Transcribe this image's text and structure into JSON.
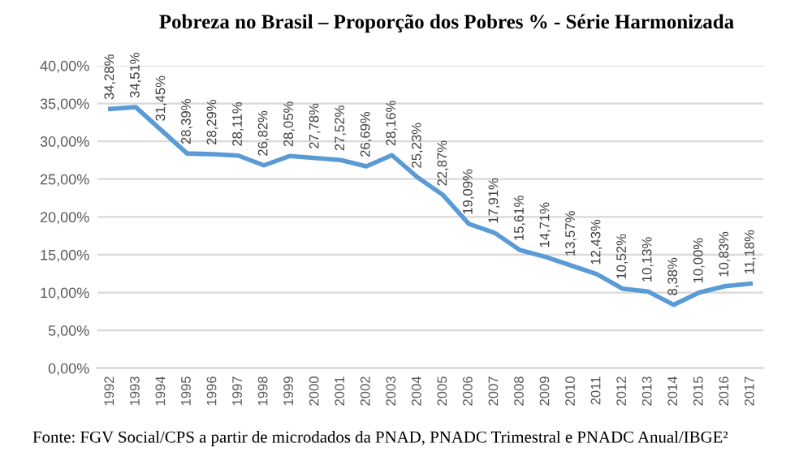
{
  "chart_data": {
    "type": "line",
    "title": "Pobreza no Brasil – Proporção dos Pobres % - Série Harmonizada",
    "categories": [
      "1992",
      "1993",
      "1994",
      "1995",
      "1996",
      "1997",
      "1998",
      "1999",
      "2000",
      "2001",
      "2002",
      "2003",
      "2004",
      "2005",
      "2006",
      "2007",
      "2008",
      "2009",
      "2010",
      "2011",
      "2012",
      "2013",
      "2014",
      "2015",
      "2016",
      "2017"
    ],
    "series": [
      {
        "color": "#5b9bd5",
        "values": [
          34.28,
          34.51,
          31.45,
          28.39,
          28.29,
          28.11,
          26.82,
          28.05,
          27.78,
          27.52,
          26.69,
          28.16,
          25.23,
          22.87,
          19.09,
          17.91,
          15.61,
          14.71,
          13.57,
          12.43,
          10.52,
          10.13,
          8.38,
          10.0,
          10.83,
          11.18
        ],
        "value_labels": [
          "34,28%",
          "34,51%",
          "31,45%",
          "28,39%",
          "28,29%",
          "28,11%",
          "26,82%",
          "28,05%",
          "27,78%",
          "27,52%",
          "26,69%",
          "28,16%",
          "25,23%",
          "22,87%",
          "19,09%",
          "17,91%",
          "15,61%",
          "14,71%",
          "13,57%",
          "12,43%",
          "10,52%",
          "10,13%",
          "8,38%",
          "10,00%",
          "10,83%",
          "11,18%"
        ]
      }
    ],
    "ylim": [
      0,
      40
    ],
    "yticks": [
      {
        "value": 0,
        "label": "0,00%"
      },
      {
        "value": 5,
        "label": "5,00%"
      },
      {
        "value": 10,
        "label": "10,00%"
      },
      {
        "value": 15,
        "label": "15,00%"
      },
      {
        "value": 20,
        "label": "20,00%"
      },
      {
        "value": 25,
        "label": "25,00%"
      },
      {
        "value": 30,
        "label": "30,00%"
      },
      {
        "value": 35,
        "label": "35,00%"
      },
      {
        "value": 40,
        "label": "40,00%"
      }
    ],
    "grid": "y",
    "legend": false,
    "marker": "none",
    "line_style": "solid",
    "annotations": [
      "Fonte: FGV Social/CPS a partir de microdados da PNAD, PNADC Trimestral e PNADC Anual/IBGE²"
    ]
  }
}
